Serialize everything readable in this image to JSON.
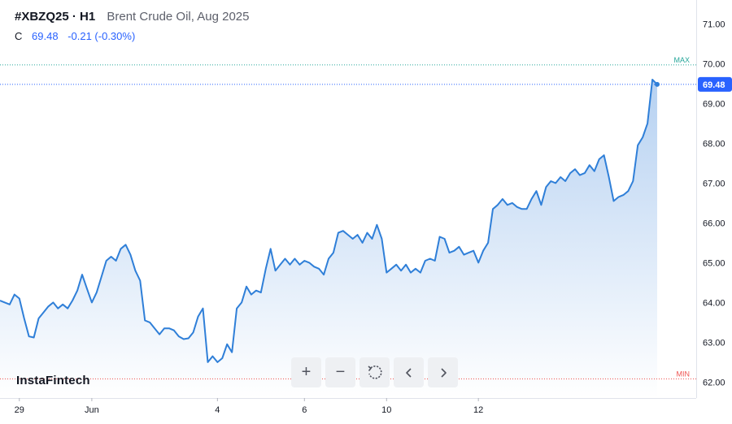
{
  "header": {
    "symbol": "#XBZQ25 · H1",
    "instrument": "Brent Crude Oil, Aug 2025",
    "close_label": "C",
    "close_value": "69.48",
    "change": "-0.21 (-0.30%)"
  },
  "brand": "InstaFintech",
  "toolbar": {
    "icons": [
      "plus-icon",
      "minus-icon",
      "reset-icon",
      "chevron-left-icon",
      "chevron-right-icon"
    ],
    "zoom_in": "+",
    "zoom_out": "−"
  },
  "colors": {
    "line": "#2f7fd8",
    "area_top": "#a9c9ef",
    "area_bottom": "#ffffff",
    "max_line": "#26a69a",
    "min_line": "#ef5350",
    "last_price": "#2962ff"
  },
  "chart_data": {
    "type": "area",
    "title": "Brent Crude Oil, Aug 2025",
    "xlabel": "",
    "ylabel": "",
    "ylim": [
      61.6,
      71.6
    ],
    "y_ticks": [
      "71.00",
      "70.00",
      "69.00",
      "68.00",
      "67.00",
      "66.00",
      "65.00",
      "64.00",
      "63.00",
      "62.00"
    ],
    "x_ticks": [
      {
        "label": "29",
        "x": 4
      },
      {
        "label": "Jun",
        "x": 19
      },
      {
        "label": "4",
        "x": 45
      },
      {
        "label": "6",
        "x": 63
      },
      {
        "label": "10",
        "x": 80
      },
      {
        "label": "12",
        "x": 99
      }
    ],
    "max_label": "MAX",
    "min_label": "MIN",
    "max_value": 69.97,
    "min_value": 62.08,
    "last_price_label": "69.48",
    "last_value": 69.48,
    "series": [
      {
        "values": [
          64.05,
          64.0,
          63.95,
          64.2,
          64.1,
          63.6,
          63.15,
          63.12,
          63.6,
          63.75,
          63.9,
          64.0,
          63.85,
          63.95,
          63.85,
          64.05,
          64.3,
          64.7,
          64.35,
          64.0,
          64.25,
          64.65,
          65.05,
          65.15,
          65.05,
          65.35,
          65.45,
          65.2,
          64.8,
          64.55,
          63.55,
          63.5,
          63.35,
          63.2,
          63.35,
          63.35,
          63.3,
          63.15,
          63.08,
          63.1,
          63.25,
          63.65,
          63.85,
          62.5,
          62.65,
          62.5,
          62.6,
          62.95,
          62.75,
          63.85,
          64.0,
          64.4,
          64.2,
          64.3,
          64.25,
          64.85,
          65.35,
          64.8,
          64.95,
          65.1,
          64.95,
          65.1,
          64.95,
          65.05,
          65.0,
          64.9,
          64.85,
          64.7,
          65.1,
          65.25,
          65.75,
          65.8,
          65.7,
          65.6,
          65.7,
          65.5,
          65.75,
          65.6,
          65.95,
          65.6,
          64.75,
          64.85,
          64.95,
          64.8,
          64.95,
          64.75,
          64.85,
          64.75,
          65.05,
          65.1,
          65.05,
          65.65,
          65.6,
          65.25,
          65.3,
          65.4,
          65.2,
          65.25,
          65.3,
          65.0,
          65.3,
          65.5,
          66.35,
          66.45,
          66.6,
          66.45,
          66.5,
          66.4,
          66.35,
          66.35,
          66.6,
          66.8,
          66.45,
          66.9,
          67.05,
          67.0,
          67.15,
          67.05,
          67.25,
          67.35,
          67.2,
          67.25,
          67.45,
          67.3,
          67.6,
          67.7,
          67.15,
          66.55,
          66.65,
          66.7,
          66.8,
          67.05,
          67.95,
          68.15,
          68.5,
          69.6,
          69.48
        ]
      }
    ]
  }
}
